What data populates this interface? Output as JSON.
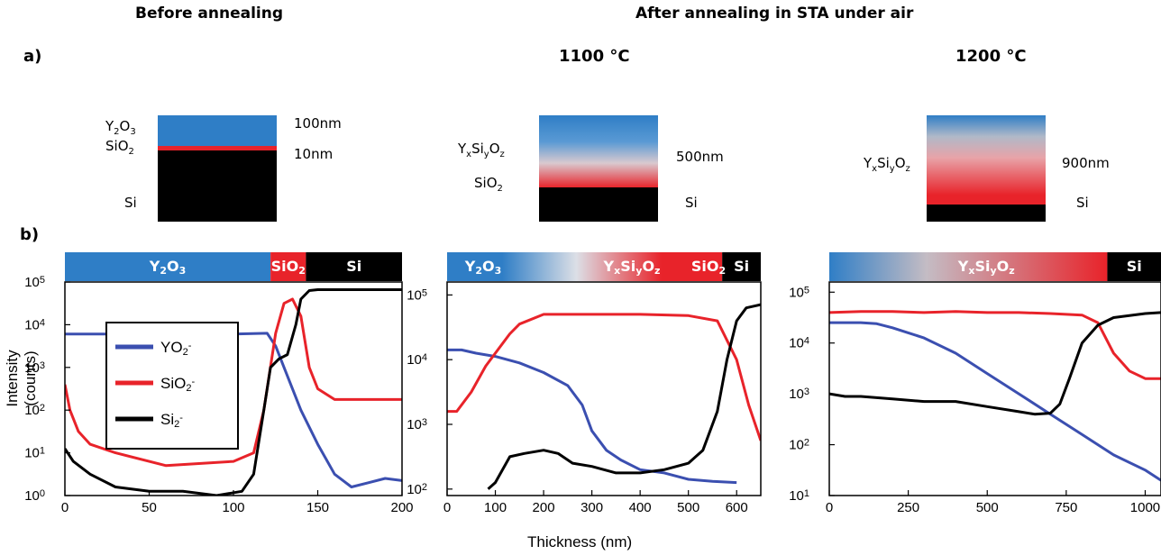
{
  "headers": {
    "before": "Before annealing",
    "after": "After annealing in STA under air",
    "panel_a": "a)",
    "panel_b": "b)",
    "t1100": "1100 °C",
    "t1200": "1200 °C"
  },
  "stacks": {
    "before": {
      "labels": {
        "top": "Y",
        "top_sub1": "2",
        "top_o": "O",
        "top_sub2": "3",
        "mid": "SiO",
        "mid_sub": "2",
        "bot": "Si"
      },
      "thick_top": "100nm",
      "thick_mid": "10nm"
    },
    "s1100": {
      "labels": {
        "a": "Y",
        "a_x": "x",
        "a_si": "Si",
        "a_y": "y",
        "a_o": "O",
        "a_z": "z",
        "b": "SiO",
        "b_sub": "2"
      },
      "thick": "500nm",
      "sub": "Si"
    },
    "s1200": {
      "labels": {
        "a": "Y",
        "a_x": "x",
        "a_si": "Si",
        "a_y": "y",
        "a_o": "O",
        "a_z": "z"
      },
      "thick": "900nm",
      "sub": "Si"
    }
  },
  "colors": {
    "blue": "#2f7ec6",
    "red": "#e8232a",
    "black": "#000000",
    "yo2": "#3b4fb0",
    "sio2": "#e8232a",
    "si2": "#000000"
  },
  "chart_data": [
    {
      "type": "line",
      "ylabel": "Intensity (counts)",
      "xlim": [
        0,
        200
      ],
      "ylim_log10": [
        0,
        5
      ],
      "x_ticks": [
        "0",
        "50",
        "100",
        "150",
        "200"
      ],
      "y_ticks": [
        "10",
        "10",
        "10",
        "10",
        "10",
        "10"
      ],
      "y_exp": [
        "0",
        "1",
        "2",
        "3",
        "4",
        "5"
      ],
      "bar": [
        {
          "label": "Y",
          "sub1": "2",
          "o": "O",
          "sub2": "3",
          "from": 0,
          "to": 122
        },
        {
          "label": "SiO",
          "sub1": "2",
          "from": 122,
          "to": 143
        },
        {
          "label": "Si",
          "from": 143,
          "to": 200
        }
      ],
      "legend": [
        {
          "name": "YO",
          "sub": "2",
          "sup": "-",
          "color": "#3b4fb0"
        },
        {
          "name": "SiO",
          "sub": "2",
          "sup": "-",
          "color": "#e8232a"
        },
        {
          "name": "Si",
          "sub": "2",
          "sup": "-",
          "color": "#000000"
        }
      ],
      "series": [
        {
          "name": "YO2-",
          "color": "#3b4fb0",
          "x": [
            0,
            20,
            60,
            100,
            120,
            125,
            130,
            140,
            150,
            160,
            170,
            180,
            190,
            200
          ],
          "y": [
            3.78,
            3.78,
            3.78,
            3.78,
            3.8,
            3.5,
            3.0,
            2.0,
            1.2,
            0.5,
            0.2,
            0.3,
            0.4,
            0.35
          ]
        },
        {
          "name": "SiO2-",
          "color": "#e8232a",
          "x": [
            0,
            3,
            8,
            15,
            30,
            60,
            100,
            112,
            118,
            125,
            130,
            135,
            140,
            145,
            150,
            160,
            180,
            200
          ],
          "y": [
            2.6,
            2.0,
            1.5,
            1.2,
            1.0,
            0.7,
            0.8,
            1.0,
            2.0,
            3.8,
            4.5,
            4.6,
            4.2,
            3.0,
            2.5,
            2.25,
            2.25,
            2.25
          ]
        },
        {
          "name": "Si2-",
          "color": "#000000",
          "x": [
            0,
            5,
            15,
            30,
            50,
            70,
            90,
            105,
            112,
            118,
            122,
            127,
            132,
            137,
            140,
            145,
            150,
            160,
            200
          ],
          "y": [
            1.1,
            0.8,
            0.5,
            0.2,
            0.1,
            0.1,
            0.0,
            0.1,
            0.5,
            2.0,
            3.0,
            3.2,
            3.3,
            4.0,
            4.6,
            4.8,
            4.82,
            4.82,
            4.82
          ]
        }
      ]
    },
    {
      "type": "line",
      "xlabel": "Thickness (nm)",
      "xlim": [
        0,
        650
      ],
      "ylim_log10": [
        1.9,
        5.2
      ],
      "x_ticks": [
        "0",
        "100",
        "200",
        "300",
        "400",
        "500",
        "600"
      ],
      "y_ticks": [
        "10",
        "10",
        "10",
        "10"
      ],
      "y_exp": [
        "2",
        "3",
        "4",
        "5"
      ],
      "bar": [
        {
          "label": "Y",
          "sub1": "2",
          "o": "O",
          "sub2": "3"
        },
        {
          "label": "Y",
          "x": "x",
          "si": "Si",
          "y": "y",
          "o": "O",
          "z": "z"
        },
        {
          "label": "SiO",
          "sub1": "2"
        },
        {
          "label": "Si"
        }
      ],
      "series": [
        {
          "name": "YO2-",
          "color": "#3b4fb0",
          "x": [
            0,
            30,
            60,
            100,
            150,
            200,
            250,
            280,
            300,
            330,
            360,
            400,
            450,
            500,
            550,
            600
          ],
          "y": [
            4.15,
            4.15,
            4.1,
            4.05,
            3.95,
            3.8,
            3.6,
            3.3,
            2.9,
            2.6,
            2.45,
            2.3,
            2.25,
            2.15,
            2.12,
            2.1
          ]
        },
        {
          "name": "SiO2-",
          "color": "#e8232a",
          "x": [
            0,
            20,
            50,
            80,
            100,
            130,
            150,
            200,
            250,
            300,
            400,
            500,
            560,
            600,
            625,
            650
          ],
          "y": [
            3.2,
            3.2,
            3.5,
            3.9,
            4.1,
            4.4,
            4.55,
            4.7,
            4.7,
            4.7,
            4.7,
            4.68,
            4.6,
            4.0,
            3.3,
            2.75
          ]
        },
        {
          "name": "Si2-",
          "color": "#000000",
          "x": [
            85,
            100,
            130,
            160,
            200,
            230,
            260,
            300,
            350,
            400,
            450,
            500,
            530,
            560,
            580,
            600,
            620,
            650
          ],
          "y": [
            2.0,
            2.1,
            2.5,
            2.55,
            2.6,
            2.55,
            2.4,
            2.35,
            2.25,
            2.25,
            2.3,
            2.4,
            2.6,
            3.2,
            4.0,
            4.6,
            4.8,
            4.85
          ]
        }
      ]
    },
    {
      "type": "line",
      "xlim": [
        0,
        1050
      ],
      "ylim_log10": [
        1.0,
        5.2
      ],
      "x_ticks": [
        "0",
        "250",
        "500",
        "750",
        "1000"
      ],
      "y_ticks": [
        "10",
        "10",
        "10",
        "10",
        "10"
      ],
      "y_exp": [
        "1",
        "2",
        "3",
        "4",
        "5"
      ],
      "bar": [
        {
          "label": "Y",
          "x": "x",
          "si": "Si",
          "y": "y",
          "o": "O",
          "z": "z"
        },
        {
          "label": "Si"
        }
      ],
      "series": [
        {
          "name": "YO2-",
          "color": "#3b4fb0",
          "x": [
            0,
            50,
            100,
            150,
            200,
            250,
            300,
            400,
            500,
            600,
            700,
            800,
            900,
            1000,
            1050
          ],
          "y": [
            4.4,
            4.4,
            4.4,
            4.38,
            4.3,
            4.2,
            4.1,
            3.8,
            3.4,
            3.0,
            2.6,
            2.2,
            1.8,
            1.5,
            1.3
          ]
        },
        {
          "name": "SiO2-",
          "color": "#e8232a",
          "x": [
            0,
            100,
            200,
            300,
            400,
            500,
            600,
            700,
            800,
            850,
            900,
            950,
            1000,
            1050
          ],
          "y": [
            4.6,
            4.62,
            4.62,
            4.6,
            4.62,
            4.6,
            4.6,
            4.58,
            4.55,
            4.4,
            3.8,
            3.45,
            3.3,
            3.3
          ]
        },
        {
          "name": "Si2-",
          "color": "#000000",
          "x": [
            0,
            50,
            100,
            200,
            300,
            400,
            500,
            600,
            650,
            700,
            730,
            760,
            800,
            850,
            900,
            1000,
            1050
          ],
          "y": [
            3.0,
            2.95,
            2.95,
            2.9,
            2.85,
            2.85,
            2.75,
            2.65,
            2.6,
            2.62,
            2.8,
            3.3,
            4.0,
            4.35,
            4.5,
            4.58,
            4.6
          ]
        }
      ]
    }
  ]
}
